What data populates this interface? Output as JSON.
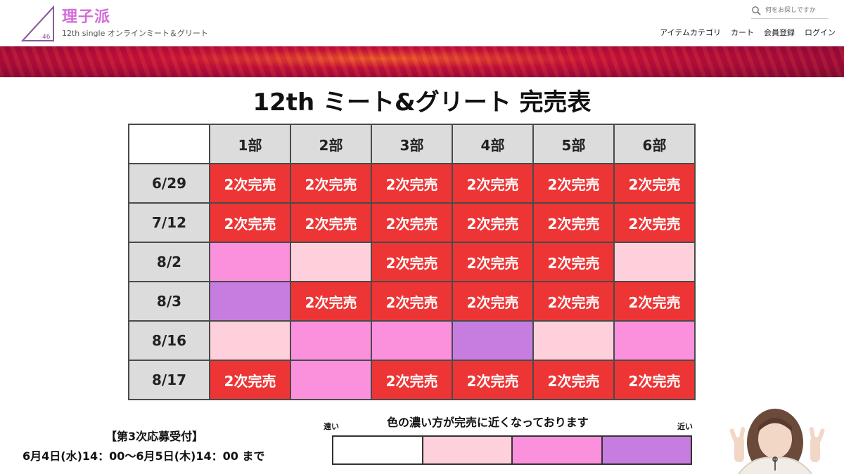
{
  "header": {
    "logo_number": "46",
    "brand_title": "理子派",
    "brand_subtitle": "12th single オンラインミート＆グリート",
    "search_placeholder": "何をお探しですか",
    "nav": [
      "アイテムカテゴリ",
      "カート",
      "会員登録",
      "ログイン"
    ]
  },
  "main": {
    "title": "12th ミート&グリート 完売表",
    "table": {
      "columns": [
        "1部",
        "2部",
        "3部",
        "4部",
        "5部",
        "6部"
      ],
      "sold_label": "2次完売",
      "rows": [
        {
          "date": "6/29",
          "cells": [
            "sold",
            "sold",
            "sold",
            "sold",
            "sold",
            "sold"
          ]
        },
        {
          "date": "7/12",
          "cells": [
            "sold",
            "sold",
            "sold",
            "sold",
            "sold",
            "sold"
          ]
        },
        {
          "date": "8/2",
          "cells": [
            "level2",
            "level1",
            "sold",
            "sold",
            "sold",
            "level1"
          ]
        },
        {
          "date": "8/3",
          "cells": [
            "level3",
            "sold",
            "sold",
            "sold",
            "sold",
            "sold"
          ]
        },
        {
          "date": "8/16",
          "cells": [
            "level1",
            "level2",
            "level2",
            "level3",
            "level1",
            "level2"
          ]
        },
        {
          "date": "8/17",
          "cells": [
            "sold",
            "level2",
            "sold",
            "sold",
            "sold",
            "sold"
          ]
        }
      ]
    }
  },
  "footer": {
    "notice_title": "【第3次応募受付】",
    "notice_period": "6月4日(水)14：00〜6月5日(木)14：00 まで",
    "legend_title": "色の濃い方が完売に近くなっております",
    "legend_far": "遠い",
    "legend_near": "近い",
    "legend_colors": [
      "#ffffff",
      "#fdd0db",
      "#fb90dc",
      "#c77de0"
    ]
  },
  "colors": {
    "sold": "#ee3535",
    "level1": "#fdd0db",
    "level2": "#fb90dc",
    "level3": "#c77de0",
    "brand": "#d36bd8"
  }
}
